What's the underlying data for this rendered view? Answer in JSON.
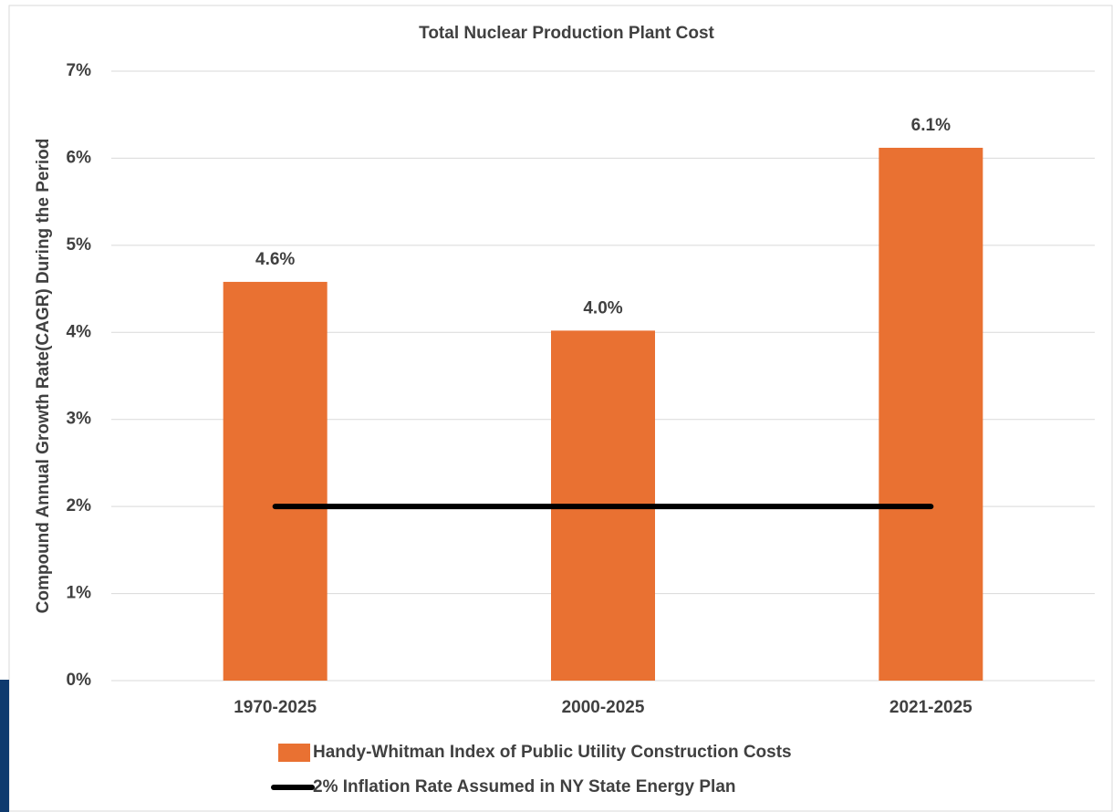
{
  "chart_data": {
    "type": "bar",
    "title": "Total Nuclear Production Plant Cost",
    "y_label": "Compound Annual Growth Rate(CAGR) During the Period",
    "categories": [
      "1970-2025",
      "2000-2025",
      "2021-2025"
    ],
    "series": [
      {
        "name": "Handy-Whitman Index of Public Utility Construction Costs",
        "type": "bar",
        "color": "#e97132",
        "values": [
          4.58,
          4.02,
          6.12
        ],
        "value_labels": [
          "4.6%",
          "4.0%",
          "6.1%"
        ]
      },
      {
        "name": "2% Inflation Rate Assumed in NY State Energy Plan",
        "type": "line",
        "color": "#000000",
        "values": [
          2,
          2,
          2
        ]
      }
    ],
    "ylim": [
      0,
      7
    ],
    "yticks": [
      {
        "value": 0,
        "label": "0%"
      },
      {
        "value": 1,
        "label": "1%"
      },
      {
        "value": 2,
        "label": "2%"
      },
      {
        "value": 3,
        "label": "3%"
      },
      {
        "value": 4,
        "label": "4%"
      },
      {
        "value": 5,
        "label": "5%"
      },
      {
        "value": 6,
        "label": "6%"
      },
      {
        "value": 7,
        "label": "7%"
      }
    ],
    "grid": true,
    "legend": "bottom"
  }
}
